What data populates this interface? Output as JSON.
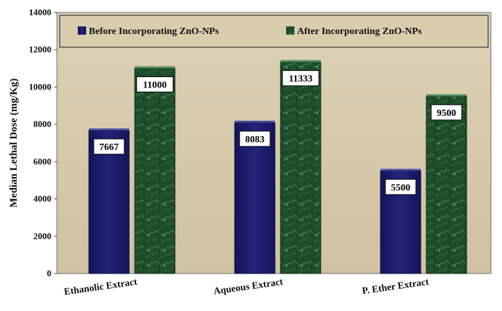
{
  "chart_data": {
    "type": "bar",
    "title": "",
    "xlabel": "",
    "ylabel": "Median Lethal Dose (mg/Kg)",
    "ylim": [
      0,
      14000
    ],
    "yticks": [
      "0",
      "2000",
      "4000",
      "6000",
      "8000",
      "10000",
      "12000",
      "14000"
    ],
    "categories": [
      "Ethanolic Extract",
      "Aqueous Extract",
      "P. Ether Extract"
    ],
    "series": [
      {
        "name": "Before Incorporating ZnO-NPs",
        "values": [
          7667,
          8083,
          5500
        ],
        "labels": [
          "7667",
          "8083",
          "5500"
        ],
        "color": "#1f1f6e"
      },
      {
        "name": "After Incorporating ZnO-NPs",
        "values": [
          11000,
          11333,
          9500
        ],
        "labels": [
          "11000",
          "11333",
          "9500"
        ],
        "color": "#1e4d2b"
      }
    ],
    "legend_position": "top",
    "grid": false,
    "plot_background": "#d9cdae"
  }
}
